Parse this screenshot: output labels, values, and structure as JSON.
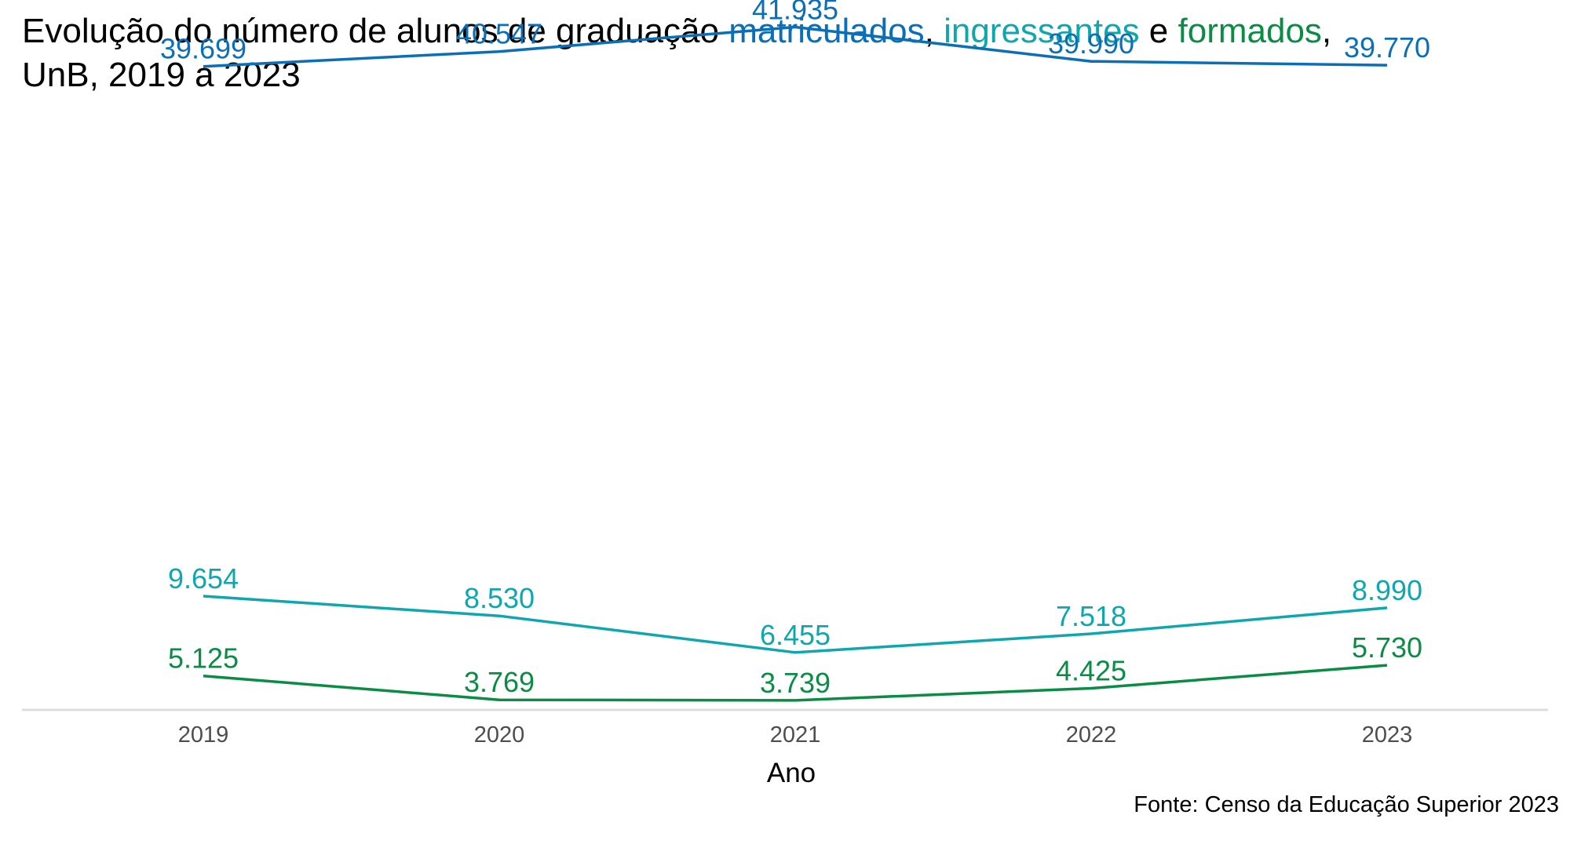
{
  "title": {
    "line1_prefix": "Evolução do número de alunos de graduação ",
    "word_matriculados": "matriculados",
    "sep1": ", ",
    "word_ingressantes": "ingressantes",
    "sep2": " e ",
    "word_formados": "formados",
    "sep3": ",",
    "line2": "UnB, 2019 a 2023"
  },
  "source": "Fonte: Censo da Educação Superior 2023",
  "colors": {
    "matriculados": "#0b6fb8",
    "ingressantes": "#10a6ae",
    "formados": "#0a8c45",
    "axis_line": "#dddddd",
    "tick_text": "#4d4d4d"
  },
  "chart_data": {
    "type": "line",
    "x": [
      2019,
      2020,
      2021,
      2022,
      2023
    ],
    "xlabel": "Ano",
    "ylabel": "",
    "ylim": [
      3200,
      42000
    ],
    "grid": false,
    "series": [
      {
        "name": "matriculados",
        "values": [
          39699,
          40547,
          41935,
          39990,
          39770
        ],
        "labels": [
          "39.699",
          "40.547",
          "41.935",
          "39.990",
          "39.770"
        ]
      },
      {
        "name": "ingressantes",
        "values": [
          9654,
          8530,
          6455,
          7518,
          8990
        ],
        "labels": [
          "9.654",
          "8.530",
          "6.455",
          "7.518",
          "8.990"
        ]
      },
      {
        "name": "formados",
        "values": [
          5125,
          3769,
          3739,
          4425,
          5730
        ],
        "labels": [
          "5.125",
          "3.769",
          "3.739",
          "4.425",
          "5.730"
        ]
      }
    ]
  }
}
